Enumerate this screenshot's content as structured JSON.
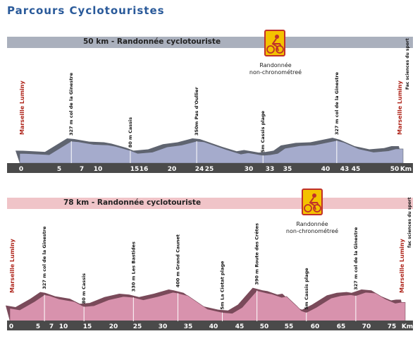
{
  "page": {
    "title": "Parcours Cyclotouristes"
  },
  "colors": {
    "title": "#2a5a9a",
    "band1": "#aab0bd",
    "fill1": "#a5abcc",
    "side1": "#5f6470",
    "band2": "#f0c4c8",
    "fill2": "#d892ad",
    "side2": "#7a4a5a",
    "axis": "#4a4a4a",
    "start_label": "#b0281e",
    "badge_bg": "#f4c200",
    "badge_border": "#c0302a"
  },
  "chart_data": [
    {
      "type": "area",
      "title": "50 km - Randonnée cyclotouriste",
      "badge_icon": "cyclist-icon",
      "badge_caption_line1": "Randonnée",
      "badge_caption_line2": "non-chronométreé",
      "x_unit": "Km",
      "x_ticks": [
        "0",
        "5",
        "7",
        "10",
        "15",
        "16",
        "20",
        "24",
        "25",
        "30",
        "33",
        "35",
        "40",
        "43",
        "45",
        "50"
      ],
      "x_max": 52,
      "y_max": 340,
      "profile": [
        [
          0,
          40
        ],
        [
          1,
          38
        ],
        [
          4,
          20
        ],
        [
          7,
          230
        ],
        [
          8,
          220
        ],
        [
          10,
          180
        ],
        [
          12,
          170
        ],
        [
          13,
          150
        ],
        [
          15,
          85
        ],
        [
          16,
          40
        ],
        [
          18,
          60
        ],
        [
          20,
          140
        ],
        [
          22,
          170
        ],
        [
          24,
          230
        ],
        [
          25,
          220
        ],
        [
          28,
          100
        ],
        [
          30,
          30
        ],
        [
          31,
          50
        ],
        [
          32,
          30
        ],
        [
          33,
          10
        ],
        [
          34,
          20
        ],
        [
          35,
          40
        ],
        [
          36,
          120
        ],
        [
          38,
          160
        ],
        [
          40,
          170
        ],
        [
          43,
          240
        ],
        [
          44,
          210
        ],
        [
          46,
          110
        ],
        [
          48,
          60
        ],
        [
          50,
          80
        ],
        [
          51,
          110
        ],
        [
          52,
          110
        ]
      ],
      "markers": [
        {
          "km": 0,
          "label": "Marseille Luminy",
          "type": "start"
        },
        {
          "km": 7,
          "label": "327 m col de la Ginestre",
          "type": "peak"
        },
        {
          "km": 15,
          "label": "80 m Cassis",
          "type": "point"
        },
        {
          "km": 24,
          "label": "350m Pas d'Oullier",
          "type": "peak"
        },
        {
          "km": 33,
          "label": "5m Cassis plage",
          "type": "point"
        },
        {
          "km": 43,
          "label": "327 m col de la Ginestre",
          "type": "peak"
        },
        {
          "km": 50,
          "label": "Marseille Luminy",
          "type": "finish",
          "extra": "Fac sciences du sport"
        }
      ]
    },
    {
      "type": "area",
      "title": "78 km - Randonnée cyclotouriste",
      "badge_icon": "cyclist-icon",
      "badge_caption_line1": "Randonnée",
      "badge_caption_line2": "non-chronométreé",
      "x_unit": "Km",
      "x_ticks": [
        "0",
        "5",
        "7",
        "10",
        "15",
        "20",
        "25",
        "30",
        "35",
        "40",
        "45",
        "50",
        "55",
        "60",
        "65",
        "70",
        "75",
        "Km"
      ],
      "x_max": 80,
      "y_max": 420,
      "profile": [
        [
          0,
          70
        ],
        [
          2,
          50
        ],
        [
          5,
          150
        ],
        [
          7,
          230
        ],
        [
          8,
          220
        ],
        [
          10,
          180
        ],
        [
          13,
          150
        ],
        [
          15,
          90
        ],
        [
          17,
          100
        ],
        [
          20,
          170
        ],
        [
          23,
          210
        ],
        [
          25,
          200
        ],
        [
          27,
          170
        ],
        [
          30,
          210
        ],
        [
          33,
          260
        ],
        [
          34,
          250
        ],
        [
          36,
          220
        ],
        [
          38,
          140
        ],
        [
          40,
          60
        ],
        [
          43,
          20
        ],
        [
          45,
          10
        ],
        [
          47,
          80
        ],
        [
          50,
          280
        ],
        [
          52,
          250
        ],
        [
          53,
          240
        ],
        [
          55,
          200
        ],
        [
          56,
          210
        ],
        [
          58,
          100
        ],
        [
          59,
          40
        ],
        [
          60,
          20
        ],
        [
          62,
          80
        ],
        [
          65,
          190
        ],
        [
          67,
          220
        ],
        [
          69,
          230
        ],
        [
          70,
          220
        ],
        [
          72,
          260
        ],
        [
          74,
          250
        ],
        [
          76,
          180
        ],
        [
          78,
          130
        ],
        [
          79,
          140
        ],
        [
          80,
          140
        ]
      ],
      "markers": [
        {
          "km": 0,
          "label": "Marseille Luminy",
          "type": "start"
        },
        {
          "km": 7,
          "label": "327 m col de la Ginestre",
          "type": "peak"
        },
        {
          "km": 15,
          "label": "80 m Cassis",
          "type": "point"
        },
        {
          "km": 25,
          "label": "330 m Les Bastides",
          "type": "peak"
        },
        {
          "km": 34,
          "label": "400 m Grand Caunet",
          "type": "peak"
        },
        {
          "km": 43,
          "label": "5m La Ciotat plage",
          "type": "point"
        },
        {
          "km": 50,
          "label": "390 m Route des Crêtes",
          "type": "peak"
        },
        {
          "km": 60,
          "label": "5m Cassis plage",
          "type": "point"
        },
        {
          "km": 70,
          "label": "327 m col de la Ginestre",
          "type": "peak"
        },
        {
          "km": 78,
          "label": "Marseille Luminy",
          "type": "finish",
          "extra": "fac sciences du sport"
        }
      ]
    }
  ]
}
